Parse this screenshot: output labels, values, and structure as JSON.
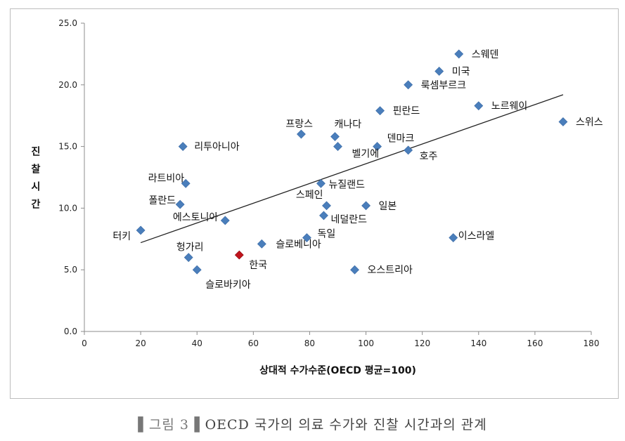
{
  "chart_data": {
    "type": "scatter",
    "xlabel": "상대적 수가수준(OECD 평균=100)",
    "ylabel": "진찰시간",
    "xlim": [
      0,
      180
    ],
    "ylim": [
      0,
      25
    ],
    "x_ticks": [
      "0",
      "20",
      "40",
      "60",
      "80",
      "100",
      "120",
      "140",
      "160",
      "180"
    ],
    "y_ticks": [
      "0.0",
      "5.0",
      "10.0",
      "15.0",
      "20.0",
      "25.0"
    ],
    "grid": false,
    "legend": "none",
    "trendline": {
      "from": [
        20,
        7.2
      ],
      "to": [
        170,
        19.2
      ]
    },
    "colors": {
      "point": "#4a7ebb",
      "highlight": "#c0141c",
      "trend": "#222222"
    },
    "points": [
      {
        "label": "스웨덴",
        "x": 133,
        "y": 22.5
      },
      {
        "label": "미국",
        "x": 126,
        "y": 21.1
      },
      {
        "label": "룩셈부르크",
        "x": 115,
        "y": 20.0
      },
      {
        "label": "핀란드",
        "x": 105,
        "y": 17.9
      },
      {
        "label": "노르웨이",
        "x": 140,
        "y": 18.3
      },
      {
        "label": "스위스",
        "x": 170,
        "y": 17.0
      },
      {
        "label": "프랑스",
        "x": 77,
        "y": 16.0
      },
      {
        "label": "캐나다",
        "x": 89,
        "y": 15.8
      },
      {
        "label": "덴마크",
        "x": 104,
        "y": 15.0
      },
      {
        "label": "벨기에",
        "x": 90,
        "y": 15.0
      },
      {
        "label": "호주",
        "x": 115,
        "y": 14.7
      },
      {
        "label": "리투아니아",
        "x": 35,
        "y": 15.0
      },
      {
        "label": "라트비아",
        "x": 36,
        "y": 12.0
      },
      {
        "label": "뉴질랜드",
        "x": 84,
        "y": 12.0
      },
      {
        "label": "폴란드",
        "x": 34,
        "y": 10.3
      },
      {
        "label": "스페인",
        "x": 86,
        "y": 10.2
      },
      {
        "label": "일본",
        "x": 100,
        "y": 10.2
      },
      {
        "label": "에스토니아",
        "x": 50,
        "y": 9.0
      },
      {
        "label": "네덜란드",
        "x": 85,
        "y": 9.4
      },
      {
        "label": "터키",
        "x": 20,
        "y": 8.2
      },
      {
        "label": "독일",
        "x": 79,
        "y": 7.6
      },
      {
        "label": "이스라엘",
        "x": 131,
        "y": 7.6
      },
      {
        "label": "슬로베니아",
        "x": 63,
        "y": 7.1
      },
      {
        "label": "헝가리",
        "x": 37,
        "y": 6.0
      },
      {
        "label": "한국",
        "x": 55,
        "y": 6.2,
        "highlight": true
      },
      {
        "label": "오스트리아",
        "x": 96,
        "y": 5.0
      },
      {
        "label": "슬로바키아",
        "x": 40,
        "y": 5.0
      }
    ]
  },
  "caption": {
    "marker_left": "▌그림 3▐",
    "text": "OECD 국가의 의료 수가와 진찰 시간과의 관계"
  }
}
